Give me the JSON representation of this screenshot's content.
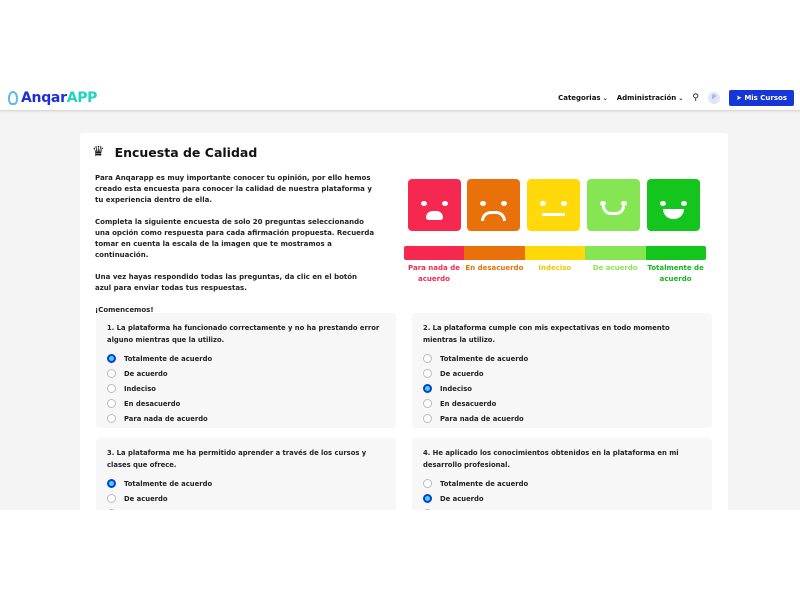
{
  "nav": {
    "logo_a": "Anqar",
    "logo_b": "APP",
    "categorias": "Categorias",
    "administracion": "Administración",
    "avatar": "P",
    "mis_cursos": "Mis Cursos"
  },
  "card": {
    "title": "Encuesta de Calidad",
    "intro": [
      "Para Anqarapp es muy importante conocer tu opinión, por ello hemos creado esta encuesta para conocer la calidad de nuestra plataforma y tu experiencia dentro de ella.",
      "Completa la siguiente encuesta de solo 20 preguntas seleccionando una opción como respuesta para cada afirmación propuesta. Recuerda tomar en cuenta la escala de la imagen que te mostramos a continuación.",
      "Una vez hayas respondido todas las preguntas, da clic en el botón azul para enviar todas tus respuestas.",
      "¡Comencemos!"
    ]
  },
  "scale": [
    {
      "label": "Para nada de acuerdo",
      "color": "#f5294f",
      "text": "#f5294f"
    },
    {
      "label": "En desacuerdo",
      "color": "#e8710a",
      "text": "#e8710a"
    },
    {
      "label": "Indeciso",
      "color": "#ffd90a",
      "text": "#f0c800"
    },
    {
      "label": "De acuerdo",
      "color": "#86e553",
      "text": "#86e553"
    },
    {
      "label": "Totalmente de acuerdo",
      "color": "#14c51e",
      "text": "#14b51e"
    }
  ],
  "options": [
    "Totalmente de acuerdo",
    "De acuerdo",
    "Indeciso",
    "En desacuerdo",
    "Para nada de acuerdo"
  ],
  "questions": [
    {
      "text": "1. La plataforma ha funcionado correctamente y no ha prestando error alguno mientras que la utilizo.",
      "selected": 0
    },
    {
      "text": "2. La plataforma cumple con mis expectativas en todo momento mientras la utilizo.",
      "selected": 2
    },
    {
      "text": "3. La plataforma me ha permitido aprender a través de los cursos y clases que ofrece.",
      "selected": 0
    },
    {
      "text": "4. He aplicado los conocimientos obtenidos en la plataforma en mi desarrollo profesional.",
      "selected": 1
    }
  ]
}
